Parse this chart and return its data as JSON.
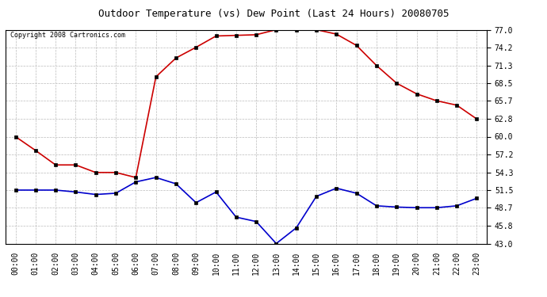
{
  "title": "Outdoor Temperature (vs) Dew Point (Last 24 Hours) 20080705",
  "copyright_text": "Copyright 2008 Cartronics.com",
  "hours": [
    "00:00",
    "01:00",
    "02:00",
    "03:00",
    "04:00",
    "05:00",
    "06:00",
    "07:00",
    "08:00",
    "09:00",
    "10:00",
    "11:00",
    "12:00",
    "13:00",
    "14:00",
    "15:00",
    "16:00",
    "17:00",
    "18:00",
    "19:00",
    "20:00",
    "21:00",
    "22:00",
    "23:00"
  ],
  "temp": [
    60.0,
    57.8,
    55.5,
    55.5,
    54.3,
    54.3,
    53.5,
    69.5,
    72.5,
    74.2,
    76.0,
    76.1,
    76.2,
    77.0,
    77.0,
    77.0,
    76.3,
    74.5,
    71.3,
    68.5,
    66.8,
    65.7,
    65.0,
    62.8
  ],
  "dew": [
    51.5,
    51.5,
    51.5,
    51.2,
    50.8,
    51.0,
    52.8,
    53.5,
    52.5,
    49.5,
    51.2,
    47.2,
    46.5,
    43.0,
    45.5,
    50.5,
    51.8,
    51.0,
    49.0,
    48.8,
    48.7,
    48.7,
    49.0,
    50.2
  ],
  "ylim": [
    43.0,
    77.0
  ],
  "yticks": [
    43.0,
    45.8,
    48.7,
    51.5,
    54.3,
    57.2,
    60.0,
    62.8,
    65.7,
    68.5,
    71.3,
    74.2,
    77.0
  ],
  "temp_color": "#cc0000",
  "dew_color": "#0000cc",
  "grid_color": "#bbbbbb",
  "bg_color": "#ffffff",
  "title_fontsize": 9,
  "copyright_fontsize": 6,
  "tick_fontsize": 7
}
